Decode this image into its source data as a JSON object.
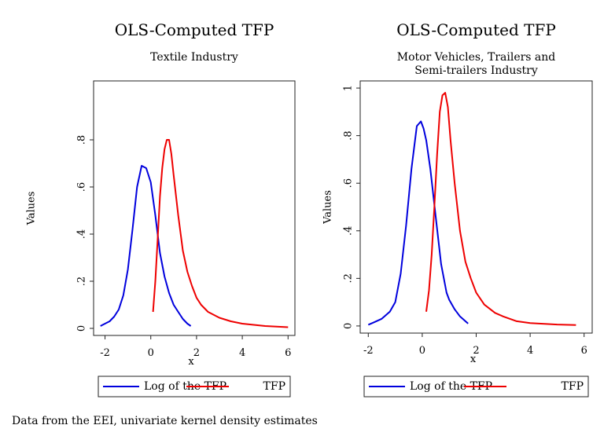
{
  "note": "Data from the EEI, univariate kernel density estimates",
  "chart_data": [
    {
      "type": "line",
      "title": "OLS-Computed TFP",
      "subtitle": [
        "Textile Industry"
      ],
      "xlabel": "x",
      "ylabel": "Values",
      "xlim": [
        -2.5,
        6.3
      ],
      "ylim": [
        -0.03,
        1.05
      ],
      "xticks": [
        -2,
        0,
        2,
        4,
        6
      ],
      "xtick_labels": [
        "-2",
        "0",
        "2",
        "4",
        "6"
      ],
      "yticks": [
        0,
        0.2,
        0.4,
        0.6,
        0.8
      ],
      "ytick_labels": [
        "0",
        ".2",
        ".4",
        ".6",
        ".8"
      ],
      "grid": false,
      "legend": "bottom",
      "series": [
        {
          "name": "Log of the TFP",
          "color": "#0000dd",
          "x": [
            -2.2,
            -2.0,
            -1.8,
            -1.6,
            -1.4,
            -1.2,
            -1.0,
            -0.8,
            -0.6,
            -0.4,
            -0.2,
            0.0,
            0.1,
            0.2,
            0.4,
            0.6,
            0.8,
            1.0,
            1.2,
            1.4,
            1.6,
            1.75
          ],
          "y": [
            0.01,
            0.02,
            0.03,
            0.05,
            0.08,
            0.14,
            0.25,
            0.42,
            0.6,
            0.69,
            0.68,
            0.62,
            0.55,
            0.48,
            0.32,
            0.22,
            0.15,
            0.1,
            0.07,
            0.04,
            0.02,
            0.01
          ]
        },
        {
          "name": "TFP",
          "color": "#ee0000",
          "x": [
            0.1,
            0.2,
            0.3,
            0.4,
            0.5,
            0.6,
            0.7,
            0.8,
            0.9,
            1.0,
            1.2,
            1.4,
            1.6,
            1.8,
            2.0,
            2.2,
            2.5,
            3.0,
            3.5,
            4.0,
            5.0,
            6.0
          ],
          "y": [
            0.07,
            0.2,
            0.38,
            0.56,
            0.68,
            0.76,
            0.8,
            0.8,
            0.74,
            0.65,
            0.48,
            0.33,
            0.24,
            0.18,
            0.13,
            0.1,
            0.07,
            0.045,
            0.03,
            0.02,
            0.01,
            0.005
          ]
        }
      ]
    },
    {
      "type": "line",
      "title": "OLS-Computed TFP",
      "subtitle": [
        "Motor Vehicles, Trailers and",
        "Semi-trailers Industry"
      ],
      "xlabel": "x",
      "ylabel": "Values",
      "xlim": [
        -2.3,
        6.3
      ],
      "ylim": [
        -0.03,
        1.03
      ],
      "xticks": [
        -2,
        0,
        2,
        4,
        6
      ],
      "xtick_labels": [
        "-2",
        "0",
        "2",
        "4",
        "6"
      ],
      "yticks": [
        0,
        0.2,
        0.4,
        0.6,
        0.8,
        1
      ],
      "ytick_labels": [
        "0",
        ".2",
        ".4",
        ".6",
        ".8",
        "1"
      ],
      "grid": false,
      "legend": "bottom",
      "series": [
        {
          "name": "Log of the TFP",
          "color": "#0000dd",
          "x": [
            -2.0,
            -1.8,
            -1.5,
            -1.2,
            -1.0,
            -0.8,
            -0.6,
            -0.4,
            -0.2,
            -0.05,
            0.05,
            0.15,
            0.3,
            0.5,
            0.7,
            0.9,
            1.0,
            1.2,
            1.4,
            1.6,
            1.7
          ],
          "y": [
            0.005,
            0.015,
            0.03,
            0.06,
            0.1,
            0.22,
            0.42,
            0.66,
            0.84,
            0.86,
            0.83,
            0.78,
            0.66,
            0.46,
            0.26,
            0.14,
            0.11,
            0.07,
            0.04,
            0.02,
            0.01
          ]
        },
        {
          "name": "TFP",
          "color": "#ee0000",
          "x": [
            0.15,
            0.25,
            0.35,
            0.45,
            0.55,
            0.65,
            0.75,
            0.85,
            0.95,
            1.05,
            1.2,
            1.4,
            1.6,
            1.8,
            2.0,
            2.3,
            2.7,
            3.0,
            3.5,
            4.0,
            5.0,
            5.7
          ],
          "y": [
            0.06,
            0.15,
            0.3,
            0.5,
            0.72,
            0.9,
            0.97,
            0.98,
            0.92,
            0.78,
            0.6,
            0.4,
            0.27,
            0.2,
            0.14,
            0.09,
            0.055,
            0.04,
            0.02,
            0.012,
            0.006,
            0.004
          ]
        }
      ]
    }
  ]
}
